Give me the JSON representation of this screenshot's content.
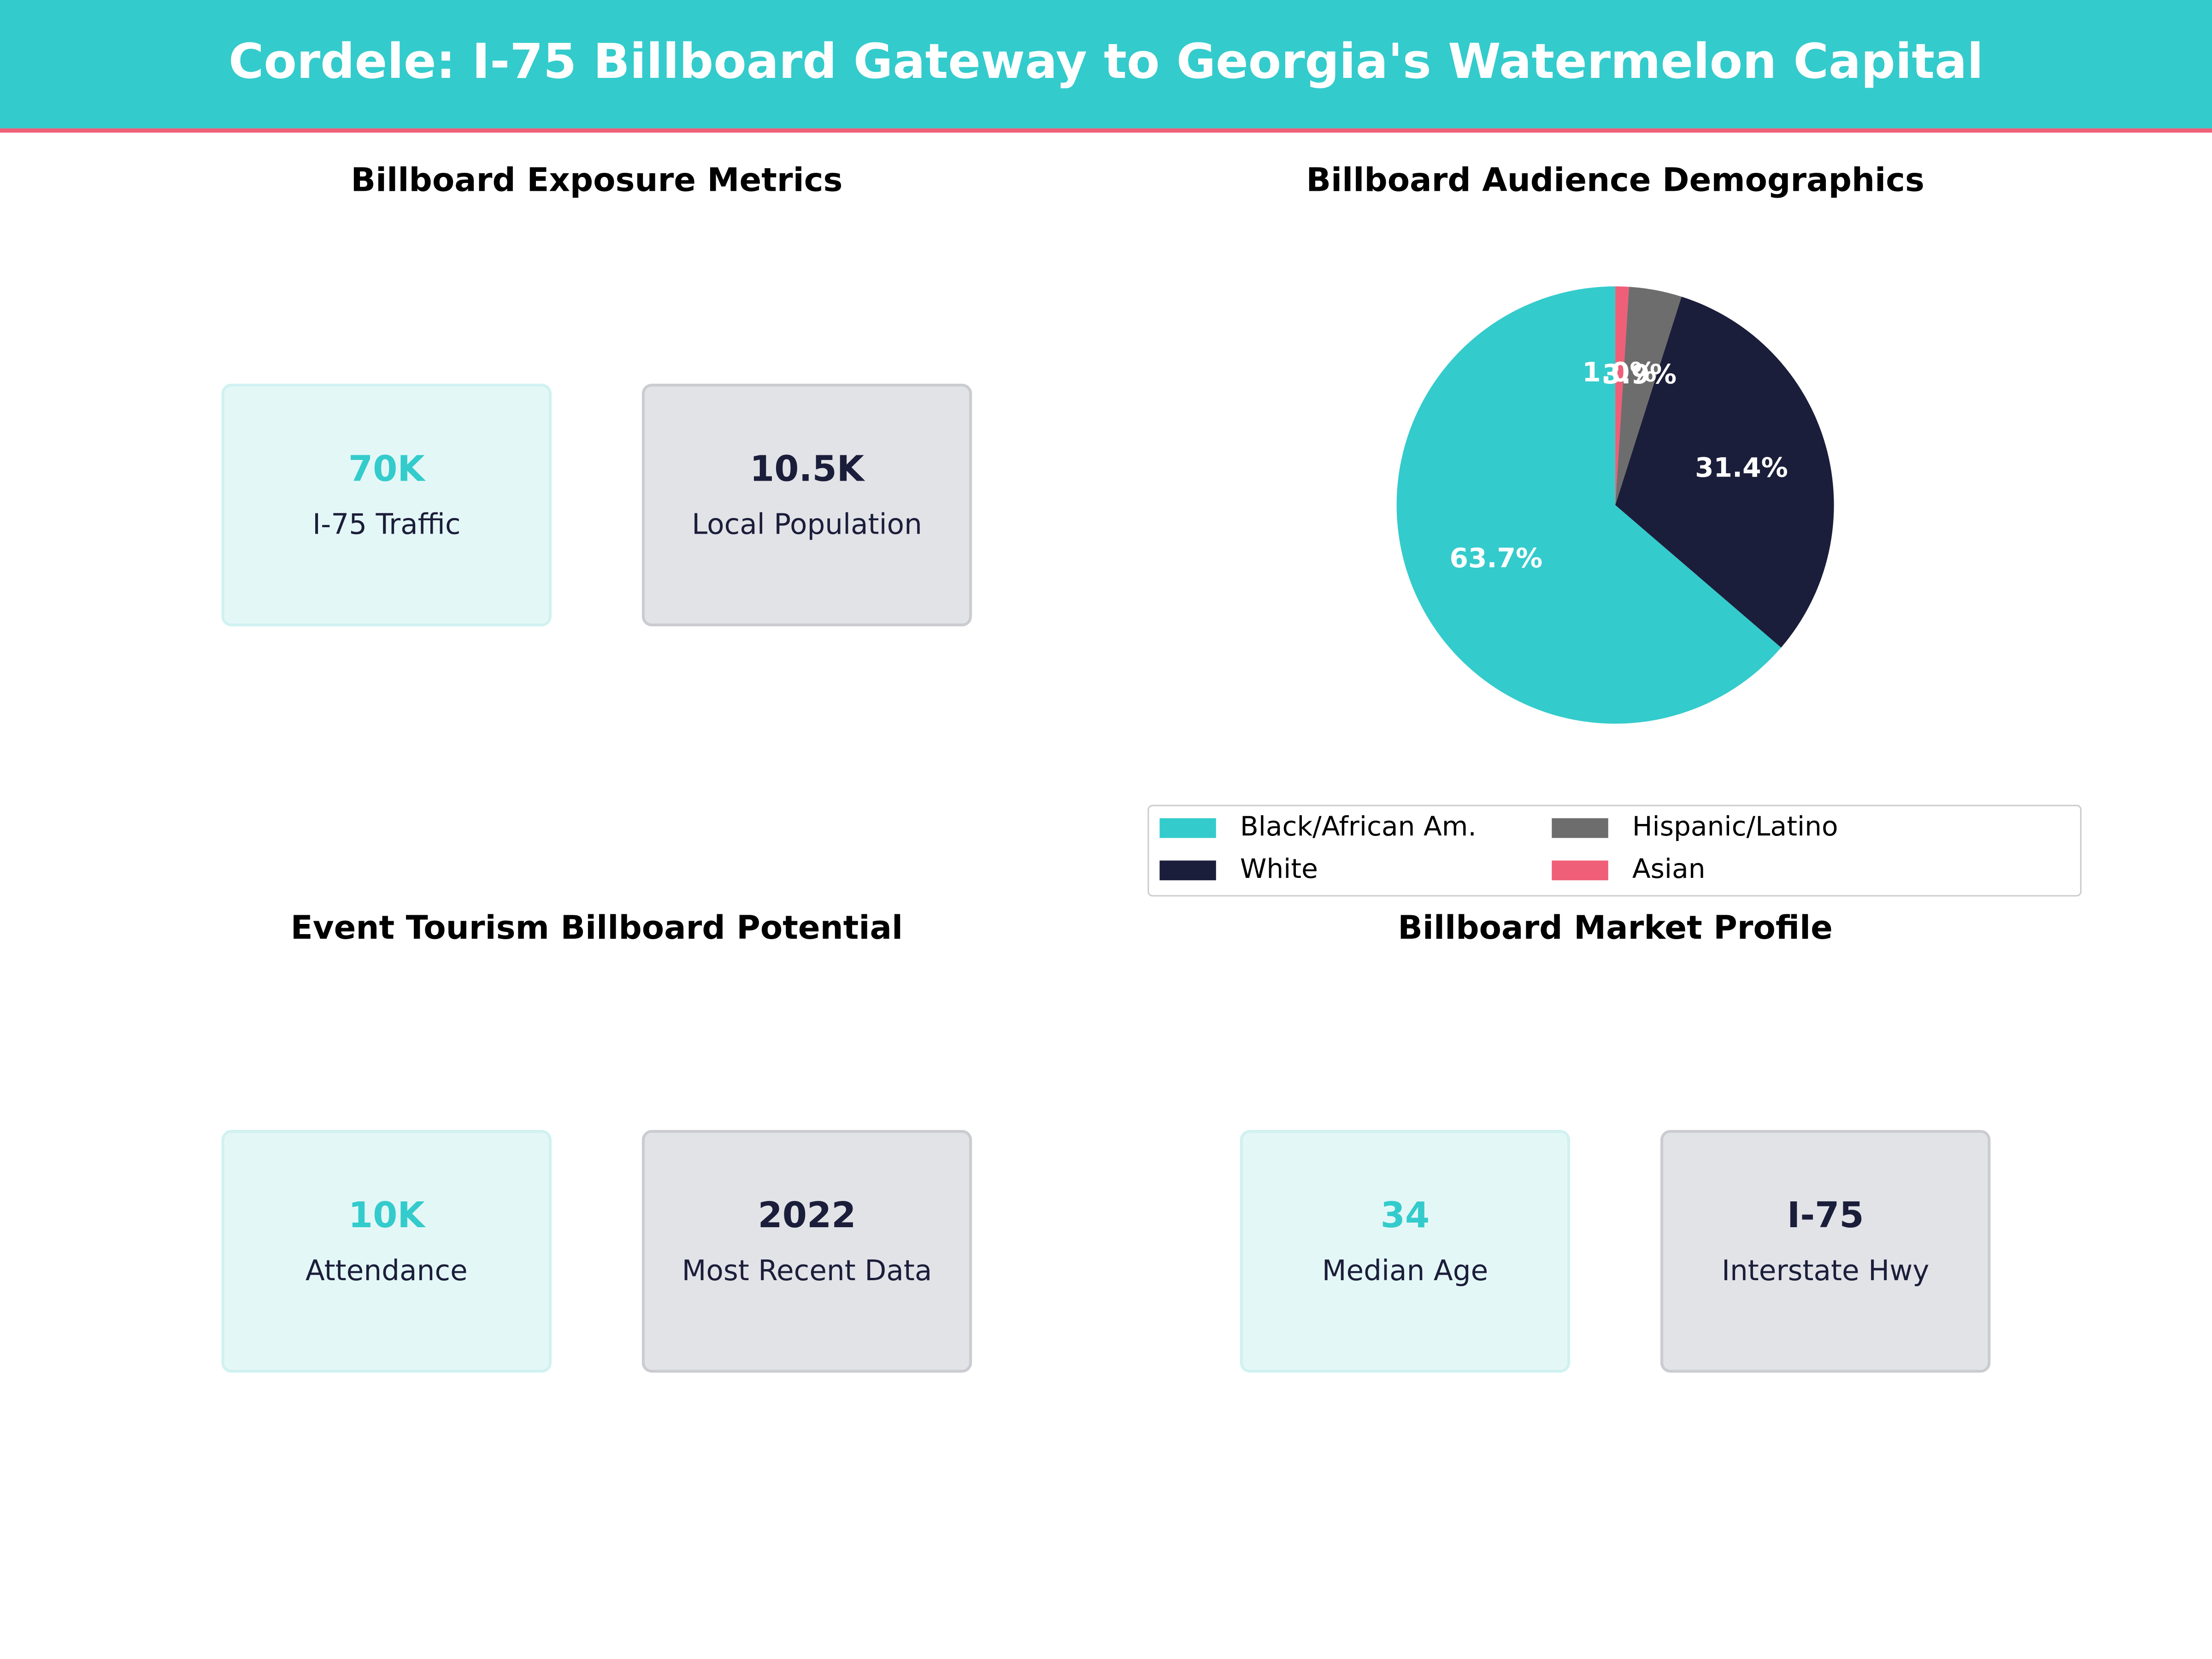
{
  "header": {
    "title": "Cordele: I-75 Billboard Gateway to Georgia's Watermelon Capital"
  },
  "panels": [
    {
      "title": "Billboard Exposure Metrics",
      "cards": [
        {
          "value": "70K",
          "label": "I-75 Traffic"
        },
        {
          "value": "10.5K",
          "label": "Local Population"
        }
      ]
    },
    {
      "title": "Event Tourism Billboard Potential",
      "cards": [
        {
          "value": "10K",
          "label": "Attendance"
        },
        {
          "value": "2022",
          "label": "Most Recent Data"
        }
      ]
    },
    {
      "title": "Billboard Market Profile",
      "cards": [
        {
          "value": "34",
          "label": "Median Age"
        },
        {
          "value": "I-75",
          "label": "Interstate Hwy"
        }
      ]
    }
  ],
  "chart_data": {
    "type": "pie",
    "title": "Billboard Audience Demographics",
    "categories": [
      "Black/African Am.",
      "White",
      "Hispanic/Latino",
      "Asian"
    ],
    "values": [
      63.7,
      31.4,
      3.9,
      1.0
    ],
    "value_labels": [
      "63.7%",
      "31.4%",
      "3.9%",
      "1.0%"
    ],
    "colors": [
      "#34cbcc",
      "#1b1e3a",
      "#6d6d6d",
      "#ef5f78"
    ]
  }
}
